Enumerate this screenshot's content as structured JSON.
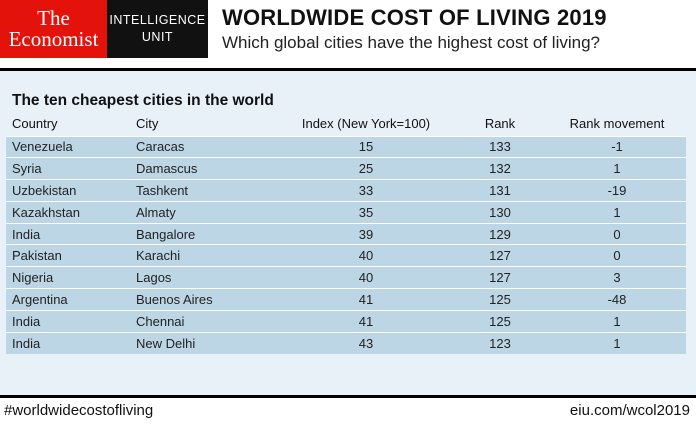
{
  "header": {
    "logo_line1": "The",
    "logo_line2": "Economist",
    "unit_line1": "INTELLIGENCE",
    "unit_line2": "UNIT",
    "title": "WORLDWIDE COST OF LIVING 2019",
    "subtitle": "Which global cities have the highest cost of living?"
  },
  "table": {
    "title": "The ten cheapest cities in the world",
    "columns": [
      "Country",
      "City",
      "Index (New York=100)",
      "Rank",
      "Rank movement"
    ],
    "rows": [
      [
        "Venezuela",
        "Caracas",
        "15",
        "133",
        "-1"
      ],
      [
        "Syria",
        "Damascus",
        "25",
        "132",
        "1"
      ],
      [
        "Uzbekistan",
        "Tashkent",
        "33",
        "131",
        "-19"
      ],
      [
        "Kazakhstan",
        "Almaty",
        "35",
        "130",
        "1"
      ],
      [
        "India",
        "Bangalore",
        "39",
        "129",
        "0"
      ],
      [
        "Pakistan",
        "Karachi",
        "40",
        "127",
        "0"
      ],
      [
        "Nigeria",
        "Lagos",
        "40",
        "127",
        "3"
      ],
      [
        "Argentina",
        "Buenos Aires",
        "41",
        "125",
        "-48"
      ],
      [
        "India",
        "Chennai",
        "41",
        "125",
        "1"
      ],
      [
        "India",
        "New Delhi",
        "43",
        "123",
        "1"
      ]
    ]
  },
  "footer": {
    "hashtag": "#worldwidecostofliving",
    "url": "eiu.com/wcol2019"
  },
  "colors": {
    "economist_red": "#e3120b",
    "eiu_black": "#111111",
    "panel_bg": "#e8f1f7",
    "row_bg": "#bdd6e6"
  }
}
